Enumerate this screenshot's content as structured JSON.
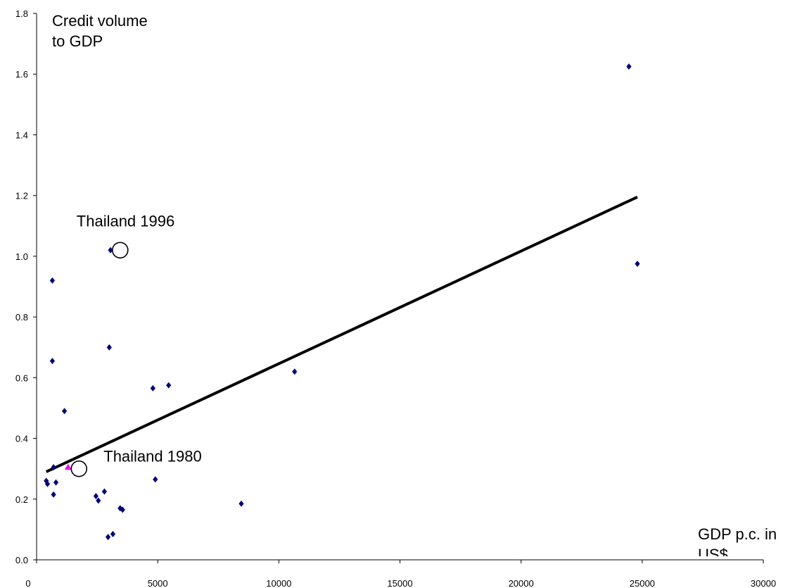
{
  "chart_data": {
    "type": "scatter",
    "title": "",
    "ylabel_lines": [
      "Credit volume",
      "to GDP"
    ],
    "xlabel_lines": [
      "GDP p.c. in",
      "US$"
    ],
    "xlim": [
      0,
      30000
    ],
    "ylim": [
      0,
      1.8
    ],
    "x_ticks": [
      "0",
      "5000",
      "10000",
      "15000",
      "20000",
      "25000",
      "30000"
    ],
    "y_ticks": [
      "0.0",
      "0.2",
      "0.4",
      "0.6",
      "0.8",
      "1.0",
      "1.2",
      "1.4",
      "1.6",
      "1.8"
    ],
    "grid": false,
    "legend": "none",
    "series": [
      {
        "marker": "diamond",
        "color": "#000080",
        "points": [
          {
            "x": 400,
            "y": 0.26
          },
          {
            "x": 450,
            "y": 0.25
          },
          {
            "x": 650,
            "y": 0.92
          },
          {
            "x": 650,
            "y": 0.655
          },
          {
            "x": 700,
            "y": 0.305
          },
          {
            "x": 700,
            "y": 0.215
          },
          {
            "x": 800,
            "y": 0.255
          },
          {
            "x": 1150,
            "y": 0.49
          },
          {
            "x": 2450,
            "y": 0.21
          },
          {
            "x": 2550,
            "y": 0.195
          },
          {
            "x": 2800,
            "y": 0.225
          },
          {
            "x": 2950,
            "y": 0.075
          },
          {
            "x": 3000,
            "y": 0.7
          },
          {
            "x": 3050,
            "y": 1.02
          },
          {
            "x": 3150,
            "y": 0.085
          },
          {
            "x": 3450,
            "y": 0.17
          },
          {
            "x": 3550,
            "y": 0.165
          },
          {
            "x": 4800,
            "y": 0.565
          },
          {
            "x": 4900,
            "y": 0.265
          },
          {
            "x": 5450,
            "y": 0.575
          },
          {
            "x": 8450,
            "y": 0.185
          },
          {
            "x": 10650,
            "y": 0.62
          },
          {
            "x": 24450,
            "y": 1.625
          },
          {
            "x": 24800,
            "y": 0.975
          }
        ]
      },
      {
        "marker": "triangle",
        "color": "#ff00ff",
        "points": [
          {
            "x": 1300,
            "y": 0.305
          }
        ]
      }
    ],
    "trendline": {
      "x": [
        400,
        24800
      ],
      "y": [
        0.29,
        1.195
      ],
      "color": "#000000"
    },
    "annotations": [
      {
        "text": "Thailand 1996",
        "circle_x": 3450,
        "circle_y": 1.02
      },
      {
        "text": "Thailand 1980",
        "circle_x": 1750,
        "circle_y": 0.3
      }
    ]
  }
}
